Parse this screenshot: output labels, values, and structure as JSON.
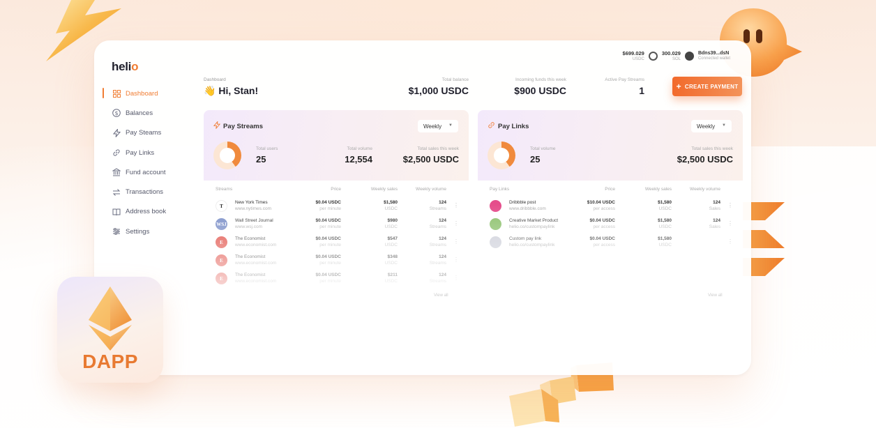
{
  "brand": {
    "logo": "helio"
  },
  "nav": [
    {
      "label": "Dashboard",
      "icon": "dashboard-icon",
      "active": true
    },
    {
      "label": "Balances",
      "icon": "dollar-icon"
    },
    {
      "label": "Pay Steams",
      "icon": "lightning-icon"
    },
    {
      "label": "Pay Links",
      "icon": "link-icon"
    },
    {
      "label": "Fund account",
      "icon": "bank-icon"
    },
    {
      "label": "Transactions",
      "icon": "transfer-icon"
    },
    {
      "label": "Address book",
      "icon": "book-icon"
    },
    {
      "label": "Settings",
      "icon": "sliders-icon"
    }
  ],
  "topbar": {
    "usdc_value": "$699.029",
    "usdc_label": "USDC",
    "sol_value": "300.029",
    "sol_label": "SOL",
    "wallet_address": "Bdns39...dsN",
    "wallet_status": "Connected wallet"
  },
  "header": {
    "breadcrumb": "Dashboard",
    "greeting": "Hi, Stan!",
    "total_balance_label": "Total balance",
    "total_balance_value": "$1,000 USDC",
    "incoming_label": "Incoming funds this week",
    "incoming_value": "$900 USDC",
    "active_label": "Active Pay Streams",
    "active_value": "1",
    "create_button": "CREATE PAYMENT"
  },
  "pay_streams": {
    "title": "Pay Streams",
    "period": "Weekly",
    "total_users_label": "Total users",
    "total_users_value": "25",
    "total_volume_label": "Total volume",
    "total_volume_value": "12,554",
    "total_sales_label": "Total sales this week",
    "total_sales_value": "$2,500 USDC",
    "columns": [
      "Streams",
      "Price",
      "Weekly sales",
      "Weekly volume"
    ],
    "rows": [
      {
        "name": "New York Times",
        "url": "www.nytimes.com",
        "price": "$0.04 USDC",
        "price_unit": "per minute",
        "sales": "$1,580",
        "sales_unit": "USDC",
        "volume": "124",
        "volume_unit": "Streams",
        "avatar": "T",
        "color": "#ffffff"
      },
      {
        "name": "Wall Street Journal",
        "url": "www.wsj.com",
        "price": "$0.04 USDC",
        "price_unit": "per minute",
        "sales": "$980",
        "sales_unit": "USDC",
        "volume": "124",
        "volume_unit": "Streams",
        "avatar": "WSJ",
        "color": "#7b8fc8"
      },
      {
        "name": "The Economist",
        "url": "www.economist.com",
        "price": "$0.04 USDC",
        "price_unit": "per minute",
        "sales": "$547",
        "sales_unit": "USDC",
        "volume": "124",
        "volume_unit": "Streams",
        "avatar": "E",
        "color": "#e0483f"
      },
      {
        "name": "The Economist",
        "url": "www.economist.com",
        "price": "$0.04 USDC",
        "price_unit": "per minute",
        "sales": "$348",
        "sales_unit": "USDC",
        "volume": "124",
        "volume_unit": "Streams",
        "avatar": "E",
        "color": "#e0483f"
      },
      {
        "name": "The Economist",
        "url": "www.economist.com",
        "price": "$0.04 USDC",
        "price_unit": "per minute",
        "sales": "$211",
        "sales_unit": "USDC",
        "volume": "124",
        "volume_unit": "Streams",
        "avatar": "E",
        "color": "#e0483f"
      }
    ],
    "view_all": "View all"
  },
  "pay_links": {
    "title": "Pay Links",
    "period": "Weekly",
    "total_volume_label": "Total volume",
    "total_volume_value": "25",
    "total_sales_label": "Total sales this week",
    "total_sales_value": "$2,500 USDC",
    "columns": [
      "Pay Links",
      "Price",
      "Weekly sales",
      "Weekly volume"
    ],
    "rows": [
      {
        "name": "Dribbble post",
        "url": "www.dribbble.com",
        "price": "$10.04 USDC",
        "price_unit": "per access",
        "sales": "$1,580",
        "sales_unit": "USDC",
        "volume": "124",
        "volume_unit": "Sales",
        "avatar": "",
        "color": "#e54d8b"
      },
      {
        "name": "Creative Market Product",
        "url": "helio.co/custompaylink",
        "price": "$0.04 USDC",
        "price_unit": "per access",
        "sales": "$1,580",
        "sales_unit": "USDC",
        "volume": "124",
        "volume_unit": "Sales",
        "avatar": "",
        "color": "#8bc06a"
      },
      {
        "name": "Custom pay link",
        "url": "helio.co/custompaylink",
        "price": "$0.04 USDC",
        "price_unit": "per access",
        "sales": "$1,580",
        "sales_unit": "USDC",
        "volume": "",
        "volume_unit": "",
        "avatar": "",
        "color": "#c9cbd6"
      }
    ],
    "view_all": "View all"
  },
  "badge": {
    "label": "DAPP"
  },
  "accent_color": "#f07c32"
}
